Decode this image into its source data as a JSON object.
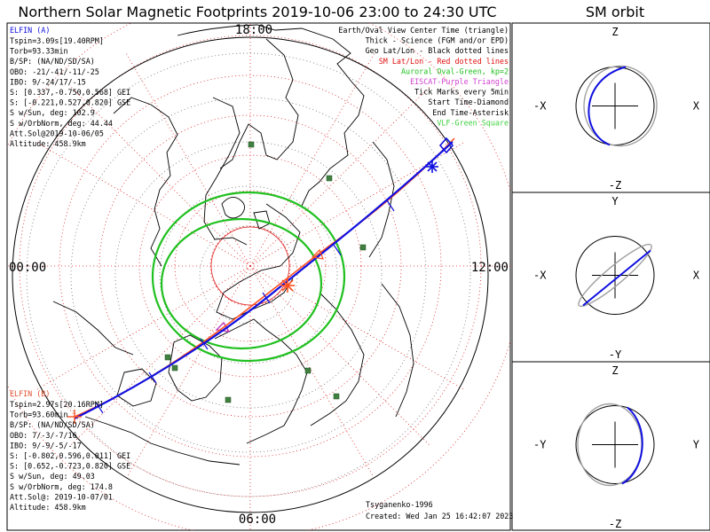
{
  "title": "Northern Solar Magnetic Footprints 2019-10-06 23:00 to 24:30 UTC",
  "orbit_title": "SM orbit",
  "hour_labels": {
    "top": "18:00",
    "left": "00:00",
    "right": "12:00",
    "bottom": "06:00"
  },
  "elfin_a": {
    "header": "ELFIN (A)",
    "lines": [
      "Tspin=3.09s[19.40RPM]",
      "Torb=93.33min",
      "B/SP: (NA/ND/SD/SA)",
      "OBO: -21/-41/-11/-25",
      "IBO: 9/-24/17/-15",
      "S: [0.337,-0.750,0.568] GEI",
      "S: [-0.221,0.527,0.820] GSE",
      "S w/Sun, deg: 102.9",
      "S w/OrbNorm, deg: 44.44",
      "Att.Sol@2019-10-06/05",
      "Altitude: 458.9km"
    ],
    "color": "#1010e0"
  },
  "elfin_b": {
    "header": "ELFIN (B)",
    "lines": [
      "Tspin=2.97s[20.16RPM]",
      "Torb=93.60min",
      "B/SP: (NA/ND/SD/SA)",
      "OBO: 7/-3/-7/16",
      "IBO: 9/-9/-5/-17",
      "S: [-0.802,0.596,0.011] GEI",
      "S: [0.652,-0.723,0.820] GSE",
      "S w/Sun, deg: 49.03",
      "S w/OrbNorm, deg: 174.8",
      "Att.Sol@: 2019-10-07/01",
      "Altitude: 458.9km"
    ],
    "color": "#e05030"
  },
  "legend": [
    {
      "text": "Earth/Oval View Center Time (triangle)",
      "color": "#000000"
    },
    {
      "text": "Thick - Science (FGM and/or EPD)",
      "color": "#000000"
    },
    {
      "text": "Geo Lat/Lon - Black dotted lines",
      "color": "#000000"
    },
    {
      "text": "SM Lat/Lon - Red dotted lines",
      "color": "#e01010"
    },
    {
      "text": "Auroral Oval-Green, kp=2",
      "color": "#20c020"
    },
    {
      "text": "EISCAT-Purple Triangle",
      "color": "#d040d0"
    },
    {
      "text": "Tick Marks every 5min",
      "color": "#000000"
    },
    {
      "text": "Start Time-Diamond",
      "color": "#000000"
    },
    {
      "text": "End Time-Asterisk",
      "color": "#000000"
    },
    {
      "text": "VLF-Green Square",
      "color": "#40d040"
    }
  ],
  "footer": {
    "model": "Tsyganenko-1996",
    "created": "Created: Wed Jan 25 16:42:07 2023"
  },
  "panels": [
    {
      "top": "Z",
      "bottom": "-Z",
      "left": "-X",
      "right": "X"
    },
    {
      "top": "Y",
      "bottom": "-Y",
      "left": "-X",
      "right": "X"
    },
    {
      "top": "Z",
      "bottom": "-Z",
      "left": "-Y",
      "right": "Y"
    }
  ],
  "colors": {
    "track_a": "#1010e0",
    "track_b": "#ff5020",
    "oval": "#20c020",
    "sm_grid": "#e02020",
    "geo_grid": "#606060",
    "vlf": "#408040",
    "eiscat": "#c040c0"
  },
  "icons": {
    "start": "diamond-icon",
    "end": "asterisk-icon",
    "vlf": "green-square-icon",
    "eiscat": "purple-triangle-icon"
  }
}
